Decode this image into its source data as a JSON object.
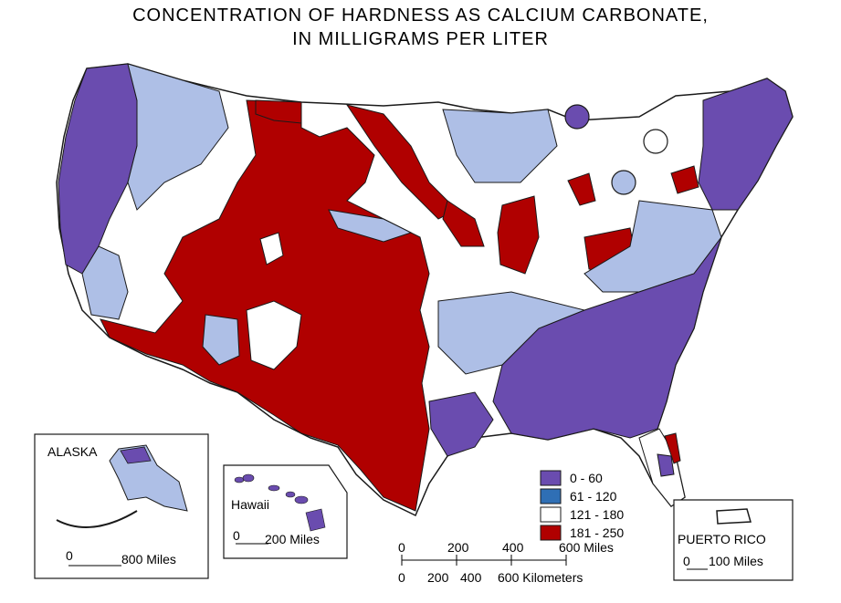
{
  "title": {
    "line1": "CONCENTRATION OF HARDNESS AS CALCIUM CARBONATE,",
    "line2": "IN MILLIGRAMS PER LITER"
  },
  "colors": {
    "c0_60": "#6a4caf",
    "c61_120": "#2f6fb5",
    "c121_180": "#ffffff",
    "c181_250": "#b00000",
    "light_band": "#aebfe6",
    "outline": "#1a1a1a"
  },
  "legend": {
    "items": [
      {
        "range": "0 - 60",
        "color": "#6a4caf"
      },
      {
        "range": "61 - 120",
        "color": "#2f6fb5"
      },
      {
        "range": "121 - 180",
        "color": "#ffffff"
      },
      {
        "range": "181 - 250",
        "color": "#b00000"
      }
    ]
  },
  "insets": {
    "alaska": {
      "label": "ALASKA",
      "scale_zero": "0",
      "scale_label": "800 Miles"
    },
    "hawaii": {
      "label": "Hawaii",
      "scale_zero": "0",
      "scale_label": "200 Miles"
    },
    "puerto_rico": {
      "label": "PUERTO RICO",
      "scale_zero": "0",
      "scale_label": "100 Miles"
    }
  },
  "main_scale": {
    "miles_ticks": [
      "0",
      "200",
      "400",
      "600 Miles"
    ],
    "km_ticks": [
      "0",
      "200",
      "400",
      "600 Kilometers"
    ]
  }
}
